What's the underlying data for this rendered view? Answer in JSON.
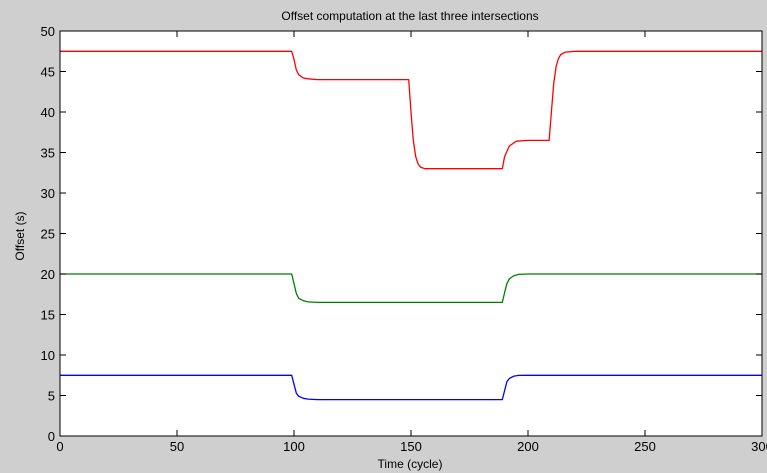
{
  "figure": {
    "background": "#cfcfcf",
    "plot_background": "#ffffff"
  },
  "chart_data": {
    "type": "line",
    "title": "Offset computation at the last three intersections",
    "xlabel": "Time (cycle)",
    "ylabel": "Offset (s)",
    "xlim": [
      0,
      300
    ],
    "ylim": [
      0,
      50
    ],
    "xticks": [
      0,
      50,
      100,
      150,
      200,
      250,
      300
    ],
    "yticks": [
      0,
      5,
      10,
      15,
      20,
      25,
      30,
      35,
      40,
      45,
      50
    ],
    "xtick_labels": [
      "0",
      "50",
      "100",
      "150",
      "200",
      "250",
      "300"
    ],
    "ytick_labels": [
      "0",
      "5",
      "10",
      "15",
      "20",
      "25",
      "30",
      "35",
      "40",
      "45",
      "50"
    ],
    "grid": false,
    "series": [
      {
        "color": "#ff0000",
        "x": [
          0,
          99,
          100,
          101,
          102,
          104,
          106,
          110,
          120,
          130,
          140,
          149,
          150,
          151,
          152,
          153,
          154,
          156,
          160,
          170,
          180,
          189,
          190,
          192,
          195,
          200,
          209,
          210,
          211,
          212,
          213,
          214,
          216,
          220,
          230,
          240,
          250,
          260,
          270,
          280,
          290,
          300
        ],
        "y": [
          47.5,
          47.5,
          46.5,
          45.2,
          44.6,
          44.2,
          44.1,
          44.0,
          44.0,
          44.0,
          44.0,
          44.0,
          40.0,
          36.5,
          34.5,
          33.6,
          33.2,
          33.0,
          33.0,
          33.0,
          33.0,
          33.0,
          34.5,
          35.8,
          36.4,
          36.5,
          36.5,
          40.0,
          43.5,
          45.6,
          46.6,
          47.1,
          47.4,
          47.5,
          47.5,
          47.5,
          47.5,
          47.5,
          47.5,
          47.5,
          47.5,
          47.5
        ]
      },
      {
        "color": "#007f00",
        "x": [
          0,
          99,
          100,
          101,
          102,
          104,
          106,
          110,
          120,
          150,
          180,
          189,
          190,
          191,
          192,
          194,
          196,
          200,
          220,
          250,
          280,
          300
        ],
        "y": [
          20.0,
          20.0,
          18.8,
          17.6,
          17.0,
          16.7,
          16.55,
          16.5,
          16.5,
          16.5,
          16.5,
          16.5,
          17.7,
          18.8,
          19.4,
          19.8,
          19.95,
          20.0,
          20.0,
          20.0,
          20.0,
          20.0
        ]
      },
      {
        "color": "#0000ff",
        "x": [
          0,
          99,
          100,
          101,
          102,
          104,
          106,
          110,
          120,
          150,
          180,
          189,
          190,
          191,
          192,
          194,
          196,
          200,
          220,
          250,
          280,
          300
        ],
        "y": [
          7.5,
          7.5,
          6.4,
          5.3,
          4.9,
          4.65,
          4.55,
          4.5,
          4.5,
          4.5,
          4.5,
          4.5,
          5.6,
          6.7,
          7.1,
          7.4,
          7.48,
          7.5,
          7.5,
          7.5,
          7.5,
          7.5
        ]
      }
    ]
  }
}
